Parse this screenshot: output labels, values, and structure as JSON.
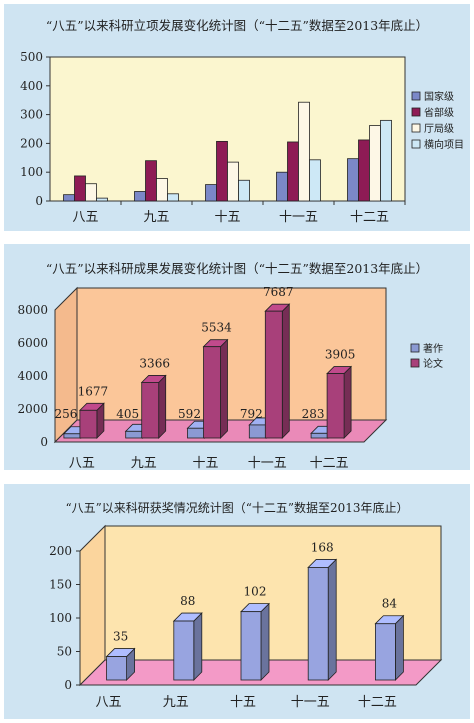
{
  "chart_data": [
    {
      "type": "bar",
      "title": "“八五”以来科研立项发展变化统计图（“十二五”数据至2013年底止）",
      "categories": [
        "八五",
        "九五",
        "十五",
        "十一五",
        "十二五"
      ],
      "ylim": [
        0,
        500
      ],
      "yticks": [
        0,
        100,
        200,
        300,
        400,
        500
      ],
      "grid": false,
      "legend_position": "right",
      "series": [
        {
          "name": "国家级",
          "color": "#7b88c8",
          "values": [
            22,
            33,
            57,
            100,
            147
          ]
        },
        {
          "name": "省部级",
          "color": "#8e1b55",
          "values": [
            87,
            140,
            207,
            205,
            212
          ]
        },
        {
          "name": "厅局级",
          "color": "#fdf7e6",
          "values": [
            60,
            78,
            135,
            343,
            262
          ]
        },
        {
          "name": "横向项目",
          "color": "#cde8f6",
          "values": [
            10,
            25,
            72,
            143,
            280
          ]
        }
      ]
    },
    {
      "type": "bar",
      "title": "“八五”以来科研成果发展变化统计图（“十二五”数据至2013年底止）",
      "categories": [
        "八五",
        "九五",
        "十五",
        "十一五",
        "十二五"
      ],
      "ylim": [
        0,
        8000
      ],
      "yticks": [
        0,
        2000,
        4000,
        6000,
        8000
      ],
      "legend_position": "right",
      "series": [
        {
          "name": "著作",
          "color": "#8b9ad3",
          "values": [
            256,
            405,
            592,
            792,
            283
          ],
          "labels": [
            "256",
            "405",
            "592",
            "792",
            "283"
          ]
        },
        {
          "name": "论文",
          "color": "#a8407a",
          "values": [
            1677,
            3366,
            5534,
            7687,
            3905
          ],
          "labels": [
            "1677",
            "3366",
            "5534",
            "7687",
            "3905"
          ]
        }
      ]
    },
    {
      "type": "bar",
      "title": "“八五”以来科研获奖情况统计图（“十二五”数据至2013年底止）",
      "categories": [
        "八五",
        "九五",
        "十五",
        "十一五",
        "十二五"
      ],
      "ylim": [
        0,
        200
      ],
      "yticks": [
        0,
        50,
        100,
        150,
        200
      ],
      "series": [
        {
          "name": "",
          "color": "#98a4e0",
          "values": [
            35,
            88,
            102,
            168,
            84
          ],
          "labels": [
            "35",
            "88",
            "102",
            "168",
            "84"
          ]
        }
      ]
    }
  ]
}
